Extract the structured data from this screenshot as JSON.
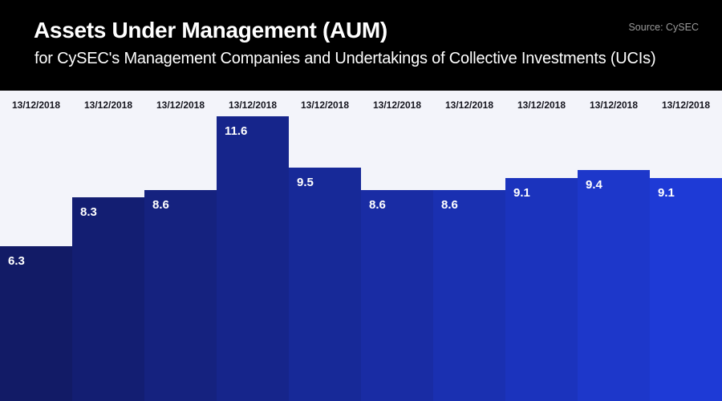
{
  "header": {
    "title": "Assets Under Management (AUM)",
    "subtitle": "for CySEC's Management Companies and Undertakings of Collective Investments (UCIs)",
    "source": "Source: CySEC"
  },
  "colors": {
    "header_bg": "#000000",
    "header_text": "#ffffff",
    "source_text": "#9a9a9a",
    "chart_bg": "#f3f4fa",
    "date_label_text": "#16161f",
    "value_label_text": "#ffffff",
    "bar_gradient_start": "#121b66",
    "bar_gradient_end": "#1e3ad6"
  },
  "chart_data": {
    "type": "bar",
    "title": "Assets Under Management (AUM)",
    "subtitle": "for CySEC's Management Companies and Undertakings of Collective Investments (UCIs)",
    "source": "Source: CySEC",
    "categories": [
      "13/12/2018",
      "13/12/2018",
      "13/12/2018",
      "13/12/2018",
      "13/12/2018",
      "13/12/2018",
      "13/12/2018",
      "13/12/2018",
      "13/12/2018",
      "13/12/2018"
    ],
    "values": [
      6.3,
      8.3,
      8.6,
      11.6,
      9.5,
      8.6,
      8.6,
      9.1,
      9.4,
      9.1
    ],
    "value_labels": [
      "6.3",
      "8.3",
      "8.6",
      "11.6",
      "9.5",
      "8.6",
      "8.6",
      "9.1",
      "9.4",
      "9.1"
    ],
    "bar_colors": [
      "#121b66",
      "#131e72",
      "#15227f",
      "#16258b",
      "#172998",
      "#192ca4",
      "#1a30b1",
      "#1b33bd",
      "#1d37ca",
      "#1e3ad6"
    ],
    "ylim": [
      0,
      12.6
    ],
    "xlabel": "",
    "ylabel": "",
    "grid": false,
    "legend": false,
    "x_labels_position": "top",
    "value_labels_position": "inside-top-left"
  }
}
